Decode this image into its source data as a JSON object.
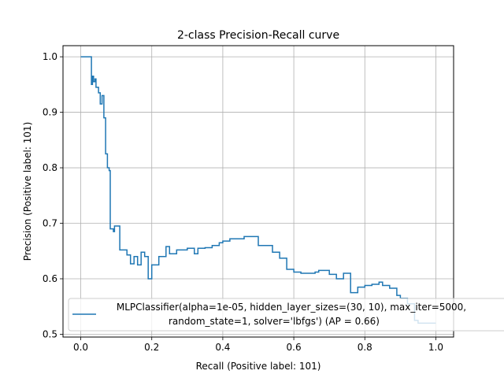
{
  "chart_data": {
    "type": "line",
    "title": "2-class Precision-Recall curve",
    "xlabel": "Recall (Positive label: 101)",
    "ylabel": "Precision (Positive label: 101)",
    "xlim": [
      -0.05,
      1.05
    ],
    "ylim": [
      0.495,
      1.02
    ],
    "xticks": [
      0.0,
      0.2,
      0.4,
      0.6,
      0.8,
      1.0
    ],
    "xtick_labels": [
      "0.0",
      "0.2",
      "0.4",
      "0.6",
      "0.8",
      "1.0"
    ],
    "yticks": [
      0.5,
      0.6,
      0.7,
      0.8,
      0.9,
      1.0
    ],
    "ytick_labels": [
      "0.5",
      "0.6",
      "0.7",
      "0.8",
      "0.9",
      "1.0"
    ],
    "grid": true,
    "step": true,
    "legend_position": "lower-left",
    "legend_lines": [
      "MLPClassifier(alpha=1e-05, hidden_layer_sizes=(30, 10), max_iter=5000,",
      "random_state=1, solver='lbfgs') (AP = 0.66)"
    ],
    "series": [
      {
        "color": "#1f77b4",
        "x": [
          0.0,
          0.0,
          0.026,
          0.03,
          0.033,
          0.036,
          0.04,
          0.043,
          0.05,
          0.055,
          0.06,
          0.065,
          0.07,
          0.075,
          0.08,
          0.083,
          0.088,
          0.092,
          0.095,
          0.1,
          0.11,
          0.12,
          0.13,
          0.14,
          0.15,
          0.16,
          0.17,
          0.18,
          0.19,
          0.2,
          0.21,
          0.22,
          0.23,
          0.24,
          0.25,
          0.27,
          0.3,
          0.32,
          0.33,
          0.35,
          0.37,
          0.39,
          0.4,
          0.42,
          0.44,
          0.46,
          0.48,
          0.5,
          0.52,
          0.54,
          0.56,
          0.58,
          0.6,
          0.62,
          0.64,
          0.66,
          0.67,
          0.7,
          0.72,
          0.74,
          0.76,
          0.78,
          0.8,
          0.82,
          0.84,
          0.85,
          0.87,
          0.89,
          0.9,
          0.92,
          0.94,
          0.95,
          0.97,
          0.99,
          1.0
        ],
        "y": [
          1.0,
          1.0,
          1.0,
          0.95,
          0.965,
          0.955,
          0.96,
          0.945,
          0.935,
          0.915,
          0.93,
          0.89,
          0.825,
          0.8,
          0.795,
          0.69,
          0.69,
          0.685,
          0.695,
          0.695,
          0.652,
          0.652,
          0.643,
          0.627,
          0.64,
          0.625,
          0.648,
          0.64,
          0.6,
          0.625,
          0.625,
          0.64,
          0.64,
          0.658,
          0.645,
          0.652,
          0.655,
          0.645,
          0.655,
          0.656,
          0.66,
          0.665,
          0.668,
          0.672,
          0.672,
          0.676,
          0.676,
          0.66,
          0.66,
          0.648,
          0.637,
          0.617,
          0.612,
          0.61,
          0.61,
          0.612,
          0.615,
          0.608,
          0.6,
          0.61,
          0.575,
          0.585,
          0.588,
          0.59,
          0.594,
          0.588,
          0.583,
          0.57,
          0.565,
          0.555,
          0.525,
          0.52,
          0.52,
          0.52,
          0.52
        ]
      }
    ]
  }
}
